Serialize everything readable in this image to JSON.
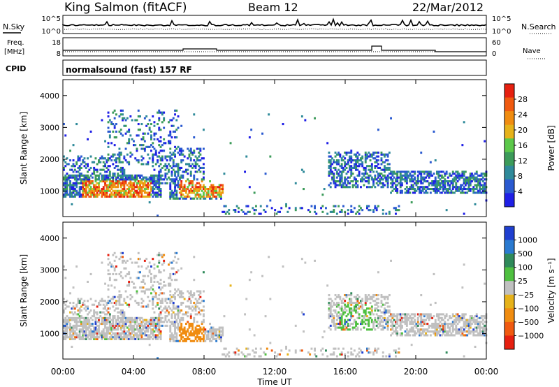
{
  "header": {
    "station": "King Salmon (fitACF)",
    "beam": "Beam 12",
    "date": "22/Mar/2012"
  },
  "noise_panel": {
    "left_label": "N.Sky",
    "right_label": "N.Search",
    "ticks_left": [
      "10^5",
      "10^0"
    ],
    "ticks_right": [
      "10^5",
      "10^0"
    ]
  },
  "freq_panel": {
    "left_label_1": "Freq.",
    "left_label_2": "[MHz]",
    "ticks_left": [
      "18",
      "8"
    ],
    "ticks_right": [
      "60",
      "0"
    ],
    "right_label": "Nave"
  },
  "cpid_panel": {
    "label": "CPID",
    "value": "normalsound (fast) 157 RF"
  },
  "colors": {
    "power_scale": [
      "#1f1fe6",
      "#2a5ad0",
      "#2f8a9a",
      "#3c9b5a",
      "#5cc84a",
      "#e6b21a",
      "#f08c10",
      "#f05a10",
      "#e62010"
    ],
    "velocity_scale": [
      "#1f3fd0",
      "#2a7ad0",
      "#2f8a5a",
      "#4fc040",
      "#c0c0c0",
      "#e6b21a",
      "#f08c10",
      "#f05a10",
      "#e62010"
    ]
  },
  "chart_data": [
    {
      "type": "heatmap",
      "name": "power",
      "ylabel": "Slant Range [km]",
      "yticks": [
        "4000",
        "3000",
        "2000",
        "1000"
      ],
      "ylim": [
        200,
        4500
      ],
      "xlim": [
        "00:00",
        "24:00"
      ],
      "colorbar": {
        "label": "Power [dB]",
        "ticks": [
          "28",
          "24",
          "20",
          "16",
          "12",
          "8",
          "4"
        ],
        "range": [
          0,
          32
        ]
      }
    },
    {
      "type": "heatmap",
      "name": "velocity",
      "ylabel": "Slant Range [km]",
      "yticks": [
        "4000",
        "3000",
        "2000",
        "1000"
      ],
      "ylim": [
        200,
        4500
      ],
      "xlim": [
        "00:00",
        "24:00"
      ],
      "xticks": [
        "00:00",
        "04:00",
        "08:00",
        "12:00",
        "16:00",
        "20:00",
        "00:00"
      ],
      "xlabel": "Time UT",
      "colorbar": {
        "label": "Velocity [m s⁻¹]",
        "ticks": [
          "1000",
          "500",
          "100",
          "25",
          "−25",
          "−100",
          "−500",
          "−1000"
        ]
      }
    }
  ]
}
